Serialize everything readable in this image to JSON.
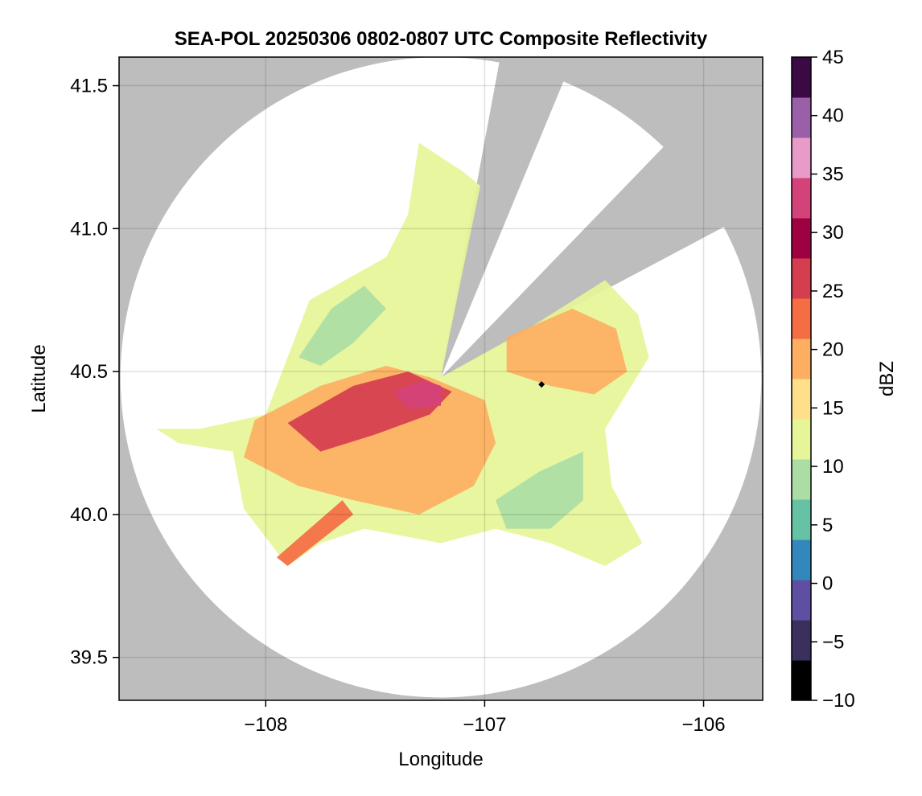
{
  "chart_data": {
    "type": "heatmap",
    "title": "SEA-POL 20250306 0802-0807 UTC Composite Reflectivity",
    "xlabel": "Longitude",
    "ylabel": "Latitude",
    "xlim": [
      -108.67,
      -105.73
    ],
    "ylim": [
      39.35,
      41.6
    ],
    "xticks": [
      -108,
      -107,
      -106
    ],
    "xtick_labels": [
      "−108",
      "−107",
      "−106"
    ],
    "yticks": [
      39.5,
      40.0,
      40.5,
      41.0,
      41.5
    ],
    "ytick_labels": [
      "39.5",
      "40.0",
      "40.5",
      "41.0",
      "41.5"
    ],
    "grid": true,
    "background_color": "#bdbdbd",
    "radar_center": {
      "lon": -107.2,
      "lat": 40.48
    },
    "radar_range_deg_lat": 1.12,
    "blocked_sectors_bearing_deg": [
      [
        10.5,
        22.5
      ],
      [
        44.0,
        62.0
      ]
    ],
    "marker": {
      "lon": -106.74,
      "lat": 40.455,
      "color": "#000000"
    },
    "colorbar": {
      "label": "dBZ",
      "min": -10,
      "max": 45,
      "ticks": [
        -10,
        -5,
        0,
        5,
        10,
        15,
        20,
        25,
        30,
        35,
        40,
        45
      ],
      "tick_labels": [
        "−10",
        "−5",
        "0",
        "5",
        "10",
        "15",
        "20",
        "25",
        "30",
        "35",
        "40",
        "45"
      ],
      "colors": [
        "#000000",
        "#3b2f5e",
        "#5e4fa2",
        "#3288bd",
        "#66c2a5",
        "#abdda4",
        "#e6f598",
        "#fee08b",
        "#fdae61",
        "#f46d43",
        "#d53e4f",
        "#9e0142",
        "#d4427a",
        "#e89bc9",
        "#9a5fa8",
        "#3b0a45"
      ]
    },
    "echo_regions": [
      {
        "name": "broad-light-echo",
        "dbz": 14,
        "polygon": [
          [
            -108.3,
            40.3
          ],
          [
            -108.0,
            40.35
          ],
          [
            -107.8,
            40.75
          ],
          [
            -107.45,
            40.9
          ],
          [
            -107.35,
            41.05
          ],
          [
            -107.3,
            41.3
          ],
          [
            -107.1,
            41.2
          ],
          [
            -107.02,
            41.15
          ],
          [
            -107.2,
            40.48
          ],
          [
            -106.8,
            40.65
          ],
          [
            -106.45,
            40.82
          ],
          [
            -106.3,
            40.7
          ],
          [
            -106.25,
            40.55
          ],
          [
            -106.45,
            40.3
          ],
          [
            -106.42,
            40.1
          ],
          [
            -106.28,
            39.9
          ],
          [
            -106.45,
            39.82
          ],
          [
            -106.7,
            39.9
          ],
          [
            -106.95,
            39.95
          ],
          [
            -107.2,
            39.9
          ],
          [
            -107.55,
            39.95
          ],
          [
            -107.75,
            39.9
          ],
          [
            -107.9,
            39.82
          ],
          [
            -108.1,
            40.02
          ],
          [
            -108.15,
            40.22
          ],
          [
            -108.4,
            40.25
          ],
          [
            -108.5,
            40.3
          ]
        ]
      },
      {
        "name": "moderate-echo-west",
        "dbz": 20,
        "polygon": [
          [
            -108.05,
            40.33
          ],
          [
            -107.75,
            40.45
          ],
          [
            -107.45,
            40.52
          ],
          [
            -107.25,
            40.48
          ],
          [
            -107.0,
            40.4
          ],
          [
            -106.95,
            40.25
          ],
          [
            -107.05,
            40.1
          ],
          [
            -107.3,
            40.0
          ],
          [
            -107.6,
            40.05
          ],
          [
            -107.85,
            40.1
          ],
          [
            -108.1,
            40.2
          ]
        ]
      },
      {
        "name": "moderate-echo-east",
        "dbz": 19,
        "polygon": [
          [
            -106.9,
            40.62
          ],
          [
            -106.6,
            40.72
          ],
          [
            -106.4,
            40.65
          ],
          [
            -106.35,
            40.5
          ],
          [
            -106.5,
            40.42
          ],
          [
            -106.7,
            40.45
          ],
          [
            -106.9,
            40.5
          ]
        ]
      },
      {
        "name": "stronger-echo-core",
        "dbz": 25,
        "polygon": [
          [
            -107.9,
            40.32
          ],
          [
            -107.6,
            40.45
          ],
          [
            -107.35,
            40.5
          ],
          [
            -107.15,
            40.43
          ],
          [
            -107.25,
            40.35
          ],
          [
            -107.5,
            40.28
          ],
          [
            -107.75,
            40.22
          ]
        ]
      },
      {
        "name": "intense-echo-near-radar",
        "dbz": 32,
        "polygon": [
          [
            -107.42,
            40.43
          ],
          [
            -107.28,
            40.47
          ],
          [
            -107.2,
            40.45
          ],
          [
            -107.2,
            40.38
          ],
          [
            -107.35,
            40.37
          ]
        ]
      },
      {
        "name": "weak-echo-northwest-band",
        "dbz": 8,
        "polygon": [
          [
            -107.85,
            40.55
          ],
          [
            -107.7,
            40.72
          ],
          [
            -107.55,
            40.8
          ],
          [
            -107.45,
            40.72
          ],
          [
            -107.6,
            40.6
          ],
          [
            -107.75,
            40.52
          ]
        ]
      },
      {
        "name": "weak-echo-southeast",
        "dbz": 9,
        "polygon": [
          [
            -106.95,
            40.05
          ],
          [
            -106.75,
            40.15
          ],
          [
            -106.55,
            40.22
          ],
          [
            -106.55,
            40.05
          ],
          [
            -106.7,
            39.95
          ],
          [
            -106.9,
            39.95
          ]
        ]
      },
      {
        "name": "moderate-echo-southwest-streak",
        "dbz": 24,
        "polygon": [
          [
            -107.95,
            39.85
          ],
          [
            -107.65,
            40.05
          ],
          [
            -107.6,
            40.0
          ],
          [
            -107.9,
            39.82
          ]
        ]
      }
    ]
  }
}
